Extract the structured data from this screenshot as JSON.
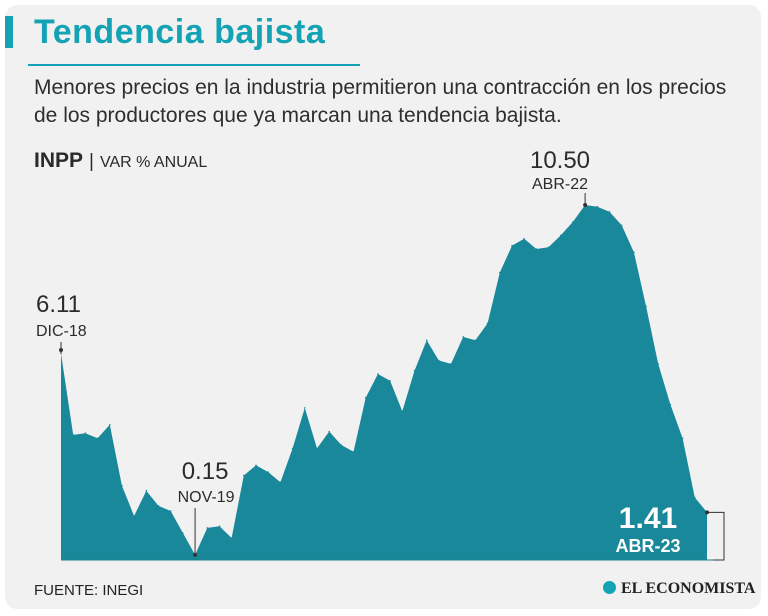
{
  "header": {
    "title": "Tendencia bajista",
    "subtitle": "Menores precios en la industria permitieron una contracción en los precios de los productores que ya marcan una tendencia bajista."
  },
  "series_label": {
    "name": "INPP",
    "separator": "|",
    "unit": "VAR % ANUAL"
  },
  "footer": {
    "source": "FUENTE: INEGI",
    "brand": "EL ECONOMISTA"
  },
  "colors": {
    "accent": "#13a3b4",
    "area": "#19889a",
    "background": "#f2f1f1"
  },
  "chart_data": {
    "type": "area",
    "title": "Tendencia bajista",
    "ylabel": "VAR % ANUAL",
    "xlim": [
      0,
      52
    ],
    "ylim": [
      0,
      10.5
    ],
    "series": [
      {
        "name": "INPP",
        "values": [
          6.11,
          3.7,
          3.75,
          3.6,
          4.0,
          2.2,
          1.3,
          2.05,
          1.6,
          1.45,
          0.8,
          0.15,
          0.95,
          1.0,
          0.65,
          2.5,
          2.8,
          2.6,
          2.3,
          3.3,
          4.5,
          3.3,
          3.8,
          3.4,
          3.2,
          4.8,
          5.5,
          5.3,
          4.4,
          5.6,
          6.5,
          5.9,
          5.8,
          6.6,
          6.5,
          7.0,
          8.5,
          9.3,
          9.5,
          9.2,
          9.25,
          9.6,
          10.0,
          10.5,
          10.45,
          10.3,
          9.9,
          9.1,
          7.5,
          5.8,
          4.6,
          3.6,
          1.85,
          1.41
        ]
      }
    ],
    "annotations": [
      {
        "index": 0,
        "value": "6.11",
        "label": "DIC-18"
      },
      {
        "index": 11,
        "value": "0.15",
        "label": "NOV-19"
      },
      {
        "index": 43,
        "value": "10.50",
        "label": "ABR-22"
      },
      {
        "index": 53,
        "value": "1.41",
        "label": "ABR-23"
      }
    ]
  }
}
